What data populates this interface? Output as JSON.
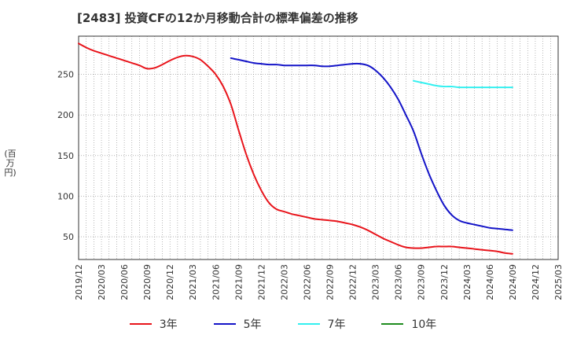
{
  "chart_data": {
    "type": "line",
    "title": "[2483]  投資CFの12か月移動合計の標準偏差の推移",
    "ylabel": "(百万円)",
    "ylim": [
      22,
      297
    ],
    "yticks": [
      50,
      100,
      150,
      200,
      250
    ],
    "x_tick_labels": [
      "2019/12",
      "2020/03",
      "2020/06",
      "2020/09",
      "2020/12",
      "2021/03",
      "2021/06",
      "2021/09",
      "2021/12",
      "2022/03",
      "2022/06",
      "2022/09",
      "2022/12",
      "2023/03",
      "2023/06",
      "2023/09",
      "2023/12",
      "2024/03",
      "2024/06",
      "2024/09",
      "2024/12",
      "2025/03"
    ],
    "grid": true,
    "legend_position": "bottom",
    "series": [
      {
        "name": "3年",
        "color": "#e8141b",
        "points": [
          [
            "2019/12",
            288
          ],
          [
            "2020/01",
            283
          ],
          [
            "2020/02",
            279
          ],
          [
            "2020/03",
            276
          ],
          [
            "2020/04",
            273
          ],
          [
            "2020/05",
            270
          ],
          [
            "2020/06",
            267
          ],
          [
            "2020/07",
            264
          ],
          [
            "2020/08",
            261
          ],
          [
            "2020/09",
            257
          ],
          [
            "2020/10",
            258
          ],
          [
            "2020/11",
            262
          ],
          [
            "2020/12",
            267
          ],
          [
            "2021/01",
            271
          ],
          [
            "2021/02",
            273
          ],
          [
            "2021/03",
            272
          ],
          [
            "2021/04",
            268
          ],
          [
            "2021/05",
            260
          ],
          [
            "2021/06",
            250
          ],
          [
            "2021/07",
            235
          ],
          [
            "2021/08",
            213
          ],
          [
            "2021/09",
            182
          ],
          [
            "2021/10",
            152
          ],
          [
            "2021/11",
            127
          ],
          [
            "2021/12",
            107
          ],
          [
            "2022/01",
            92
          ],
          [
            "2022/02",
            84
          ],
          [
            "2022/03",
            81
          ],
          [
            "2022/04",
            78
          ],
          [
            "2022/05",
            76
          ],
          [
            "2022/06",
            74
          ],
          [
            "2022/07",
            72
          ],
          [
            "2022/08",
            71
          ],
          [
            "2022/09",
            70
          ],
          [
            "2022/10",
            69
          ],
          [
            "2022/11",
            67
          ],
          [
            "2022/12",
            65
          ],
          [
            "2023/01",
            62
          ],
          [
            "2023/02",
            58
          ],
          [
            "2023/03",
            53
          ],
          [
            "2023/04",
            48
          ],
          [
            "2023/05",
            44
          ],
          [
            "2023/06",
            40
          ],
          [
            "2023/07",
            37
          ],
          [
            "2023/08",
            36
          ],
          [
            "2023/09",
            36
          ],
          [
            "2023/10",
            37
          ],
          [
            "2023/11",
            38
          ],
          [
            "2023/12",
            38
          ],
          [
            "2024/01",
            38
          ],
          [
            "2024/02",
            37
          ],
          [
            "2024/03",
            36
          ],
          [
            "2024/04",
            35
          ],
          [
            "2024/05",
            34
          ],
          [
            "2024/06",
            33
          ],
          [
            "2024/07",
            32
          ],
          [
            "2024/08",
            30
          ],
          [
            "2024/09",
            29
          ]
        ]
      },
      {
        "name": "5年",
        "color": "#1414c8",
        "points": [
          [
            "2021/08",
            270
          ],
          [
            "2021/09",
            268
          ],
          [
            "2021/10",
            266
          ],
          [
            "2021/11",
            264
          ],
          [
            "2021/12",
            263
          ],
          [
            "2022/01",
            262
          ],
          [
            "2022/02",
            262
          ],
          [
            "2022/03",
            261
          ],
          [
            "2022/04",
            261
          ],
          [
            "2022/05",
            261
          ],
          [
            "2022/06",
            261
          ],
          [
            "2022/07",
            261
          ],
          [
            "2022/08",
            260
          ],
          [
            "2022/09",
            260
          ],
          [
            "2022/10",
            261
          ],
          [
            "2022/11",
            262
          ],
          [
            "2022/12",
            263
          ],
          [
            "2023/01",
            263
          ],
          [
            "2023/02",
            261
          ],
          [
            "2023/03",
            255
          ],
          [
            "2023/04",
            246
          ],
          [
            "2023/05",
            234
          ],
          [
            "2023/06",
            219
          ],
          [
            "2023/07",
            200
          ],
          [
            "2023/08",
            180
          ],
          [
            "2023/09",
            153
          ],
          [
            "2023/10",
            128
          ],
          [
            "2023/11",
            107
          ],
          [
            "2023/12",
            89
          ],
          [
            "2024/01",
            77
          ],
          [
            "2024/02",
            70
          ],
          [
            "2024/03",
            67
          ],
          [
            "2024/04",
            65
          ],
          [
            "2024/05",
            63
          ],
          [
            "2024/06",
            61
          ],
          [
            "2024/07",
            60
          ],
          [
            "2024/08",
            59
          ],
          [
            "2024/09",
            58
          ]
        ]
      },
      {
        "name": "7年",
        "color": "#33f0f0",
        "points": [
          [
            "2023/08",
            242
          ],
          [
            "2023/09",
            240
          ],
          [
            "2023/10",
            238
          ],
          [
            "2023/11",
            236
          ],
          [
            "2023/12",
            235
          ],
          [
            "2024/01",
            235
          ],
          [
            "2024/02",
            234
          ],
          [
            "2024/03",
            234
          ],
          [
            "2024/04",
            234
          ],
          [
            "2024/05",
            234
          ],
          [
            "2024/06",
            234
          ],
          [
            "2024/07",
            234
          ],
          [
            "2024/08",
            234
          ],
          [
            "2024/09",
            234
          ]
        ]
      },
      {
        "name": "10年",
        "color": "#1f8c1f",
        "points": []
      }
    ]
  }
}
